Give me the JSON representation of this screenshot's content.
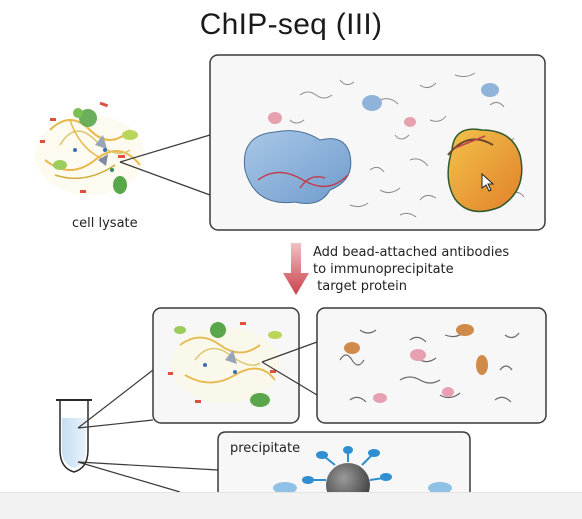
{
  "title": "ChIP-seq (III)",
  "labels": {
    "cell_lysate": "cell lysate",
    "precipitate": "precipitate"
  },
  "step": {
    "line1": "Add bead-attached antibodies",
    "line2": "to immunoprecipitate",
    "line3": " target protein"
  },
  "colors": {
    "panel_border": "#3a3a3a",
    "panel_fill": "#f6f6f6",
    "arrow": "#c9404a",
    "blue_protein": "#8fb3d9",
    "target_protein": "#e8a23a",
    "target_outline": "#2e7d32",
    "bead": "#555555",
    "antibody": "#2f8fd0"
  }
}
